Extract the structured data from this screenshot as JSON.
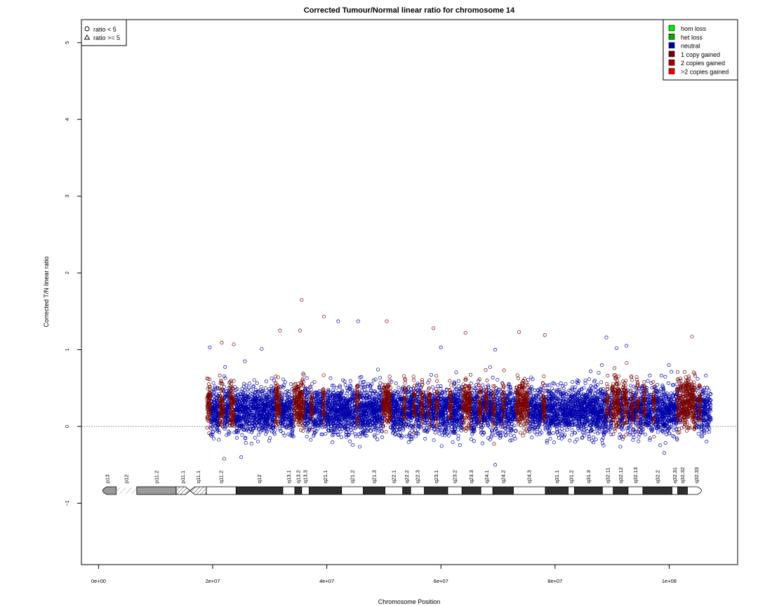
{
  "chart_data": {
    "type": "scatter",
    "title": "Corrected Tumour/Normal linear ratio for chromosome  14",
    "xlabel": "Chromosome Position",
    "ylabel": "Corrected T/N linear ratio",
    "xlim": [
      -3000000,
      112000000
    ],
    "ylim": [
      -1.8,
      5.3
    ],
    "x_ticks": [
      0,
      20000000,
      40000000,
      60000000,
      80000000,
      100000000
    ],
    "x_tick_labels": [
      "0e+00",
      "2e+07",
      "4e+07",
      "6e+07",
      "8e+07",
      "1e+08"
    ],
    "y_ticks": [
      -1,
      0,
      1,
      2,
      3,
      4,
      5
    ],
    "y_tick_labels": [
      "−1",
      "0",
      "1",
      "2",
      "3",
      "4",
      "5"
    ],
    "reference_line_y": 0,
    "shape_legend": {
      "position": "top-left",
      "items": [
        {
          "shape": "circle",
          "label": "ratio < 5"
        },
        {
          "shape": "triangle",
          "label": "ratio >= 5"
        }
      ]
    },
    "series": [
      {
        "name": "hom loss",
        "color": "#00ee00",
        "points": []
      },
      {
        "name": "het loss",
        "color": "#00aa00",
        "points": []
      },
      {
        "name": "neutral",
        "color": "#0000aa",
        "data_x_range": [
          19000000,
          107300000
        ],
        "typical_y_range": [
          -0.3,
          0.7
        ],
        "points": [
          [
            19500000,
            1.03
          ],
          [
            28600000,
            1.01
          ],
          [
            42000000,
            1.37
          ],
          [
            45500000,
            1.37
          ],
          [
            60000000,
            1.03
          ],
          [
            69500000,
            1.0
          ],
          [
            89000000,
            1.16
          ],
          [
            90800000,
            1.02
          ],
          [
            92500000,
            1.05
          ],
          [
            69500000,
            -0.5
          ],
          [
            22000000,
            -0.42
          ],
          [
            25000000,
            -0.4
          ]
        ]
      },
      {
        "name": "1 copy gained",
        "color": "#770000",
        "segments": [
          [
            19000000,
            19600000
          ],
          [
            21200000,
            21900000
          ],
          [
            23000000,
            23800000
          ],
          [
            31000000,
            31800000
          ],
          [
            34200000,
            36000000
          ],
          [
            37200000,
            37500000
          ],
          [
            39300000,
            39600000
          ],
          [
            45200000,
            45500000
          ],
          [
            49800000,
            51200000
          ],
          [
            53500000,
            53800000
          ],
          [
            55200000,
            55500000
          ],
          [
            56500000,
            56900000
          ],
          [
            57800000,
            58100000
          ],
          [
            59100000,
            59400000
          ],
          [
            61500000,
            61800000
          ],
          [
            63800000,
            65200000
          ],
          [
            66600000,
            67000000
          ],
          [
            67800000,
            68100000
          ],
          [
            69100000,
            69400000
          ],
          [
            70800000,
            71100000
          ],
          [
            73200000,
            75300000
          ],
          [
            77800000,
            78200000
          ],
          [
            89000000,
            89300000
          ],
          [
            90000000,
            91300000
          ],
          [
            91900000,
            92600000
          ],
          [
            93300000,
            93600000
          ],
          [
            94300000,
            94600000
          ],
          [
            95500000,
            95800000
          ],
          [
            97200000,
            97500000
          ],
          [
            101400000,
            101800000
          ],
          [
            102000000,
            104600000
          ],
          [
            105200000,
            105500000
          ]
        ],
        "peaks": [
          [
            35600000,
            1.65
          ],
          [
            31800000,
            1.25
          ],
          [
            35300000,
            1.25
          ],
          [
            39500000,
            1.43
          ],
          [
            50500000,
            1.37
          ],
          [
            58700000,
            1.28
          ],
          [
            64300000,
            1.22
          ],
          [
            73700000,
            1.23
          ],
          [
            78200000,
            1.19
          ],
          [
            104000000,
            1.17
          ],
          [
            21600000,
            1.09
          ],
          [
            23700000,
            1.07
          ]
        ]
      },
      {
        "name": "2 copies gained",
        "color": "#aa0000",
        "points": []
      },
      {
        "name": ">2 copies gained",
        "color": "#ee0000",
        "points": []
      }
    ],
    "ideogram": {
      "bands": [
        {
          "name": "p13",
          "start": 0,
          "end": 3100000,
          "stain": "gpos50"
        },
        {
          "name": "p12",
          "start": 3100000,
          "end": 6700000,
          "stain": "stalk"
        },
        {
          "name": "p11.2",
          "start": 6700000,
          "end": 13600000,
          "stain": "gpos50"
        },
        {
          "name": "p11.1",
          "start": 13600000,
          "end": 16000000,
          "stain": "acen"
        },
        {
          "name": "q11.1",
          "start": 16000000,
          "end": 18900000,
          "stain": "gvar"
        },
        {
          "name": "q11.2",
          "start": 18900000,
          "end": 24100000,
          "stain": "gneg"
        },
        {
          "name": "q12",
          "start": 24100000,
          "end": 32300000,
          "stain": "gpos100"
        },
        {
          "name": "q13.1",
          "start": 32300000,
          "end": 34400000,
          "stain": "gneg"
        },
        {
          "name": "q13.2",
          "start": 34400000,
          "end": 35600000,
          "stain": "gpos100"
        },
        {
          "name": "q13.3",
          "start": 35600000,
          "end": 36900000,
          "stain": "gneg"
        },
        {
          "name": "q21.1",
          "start": 36900000,
          "end": 42600000,
          "stain": "gpos100"
        },
        {
          "name": "q21.2",
          "start": 42600000,
          "end": 46400000,
          "stain": "gneg"
        },
        {
          "name": "q21.3",
          "start": 46400000,
          "end": 50200000,
          "stain": "gpos100"
        },
        {
          "name": "q22.1",
          "start": 50200000,
          "end": 53300000,
          "stain": "gneg"
        },
        {
          "name": "q22.2",
          "start": 53300000,
          "end": 54700000,
          "stain": "gpos100"
        },
        {
          "name": "q22.3",
          "start": 54700000,
          "end": 57100000,
          "stain": "gneg"
        },
        {
          "name": "q23.1",
          "start": 57100000,
          "end": 61200000,
          "stain": "gpos100"
        },
        {
          "name": "q23.2",
          "start": 61200000,
          "end": 63700000,
          "stain": "gneg"
        },
        {
          "name": "q23.3",
          "start": 63700000,
          "end": 67000000,
          "stain": "gpos100"
        },
        {
          "name": "q24.1",
          "start": 67000000,
          "end": 69100000,
          "stain": "gneg"
        },
        {
          "name": "q24.2",
          "start": 69100000,
          "end": 72700000,
          "stain": "gpos100"
        },
        {
          "name": "q24.3",
          "start": 72700000,
          "end": 78300000,
          "stain": "gneg"
        },
        {
          "name": "q31.1",
          "start": 78300000,
          "end": 82300000,
          "stain": "gpos100"
        },
        {
          "name": "q31.2",
          "start": 82300000,
          "end": 83400000,
          "stain": "gneg"
        },
        {
          "name": "q31.3",
          "start": 83400000,
          "end": 88300000,
          "stain": "gpos100"
        },
        {
          "name": "q32.11",
          "start": 88300000,
          "end": 90200000,
          "stain": "gneg"
        },
        {
          "name": "q32.12",
          "start": 90200000,
          "end": 92800000,
          "stain": "gpos100"
        },
        {
          "name": "q32.13",
          "start": 92800000,
          "end": 95400000,
          "stain": "gneg"
        },
        {
          "name": "q32.2",
          "start": 95400000,
          "end": 100500000,
          "stain": "gpos100"
        },
        {
          "name": "q32.31",
          "start": 100500000,
          "end": 101500000,
          "stain": "gneg"
        },
        {
          "name": "q32.32",
          "start": 101500000,
          "end": 103200000,
          "stain": "gpos100"
        },
        {
          "name": "q32.33",
          "start": 103200000,
          "end": 106400000,
          "stain": "gneg"
        }
      ]
    }
  }
}
